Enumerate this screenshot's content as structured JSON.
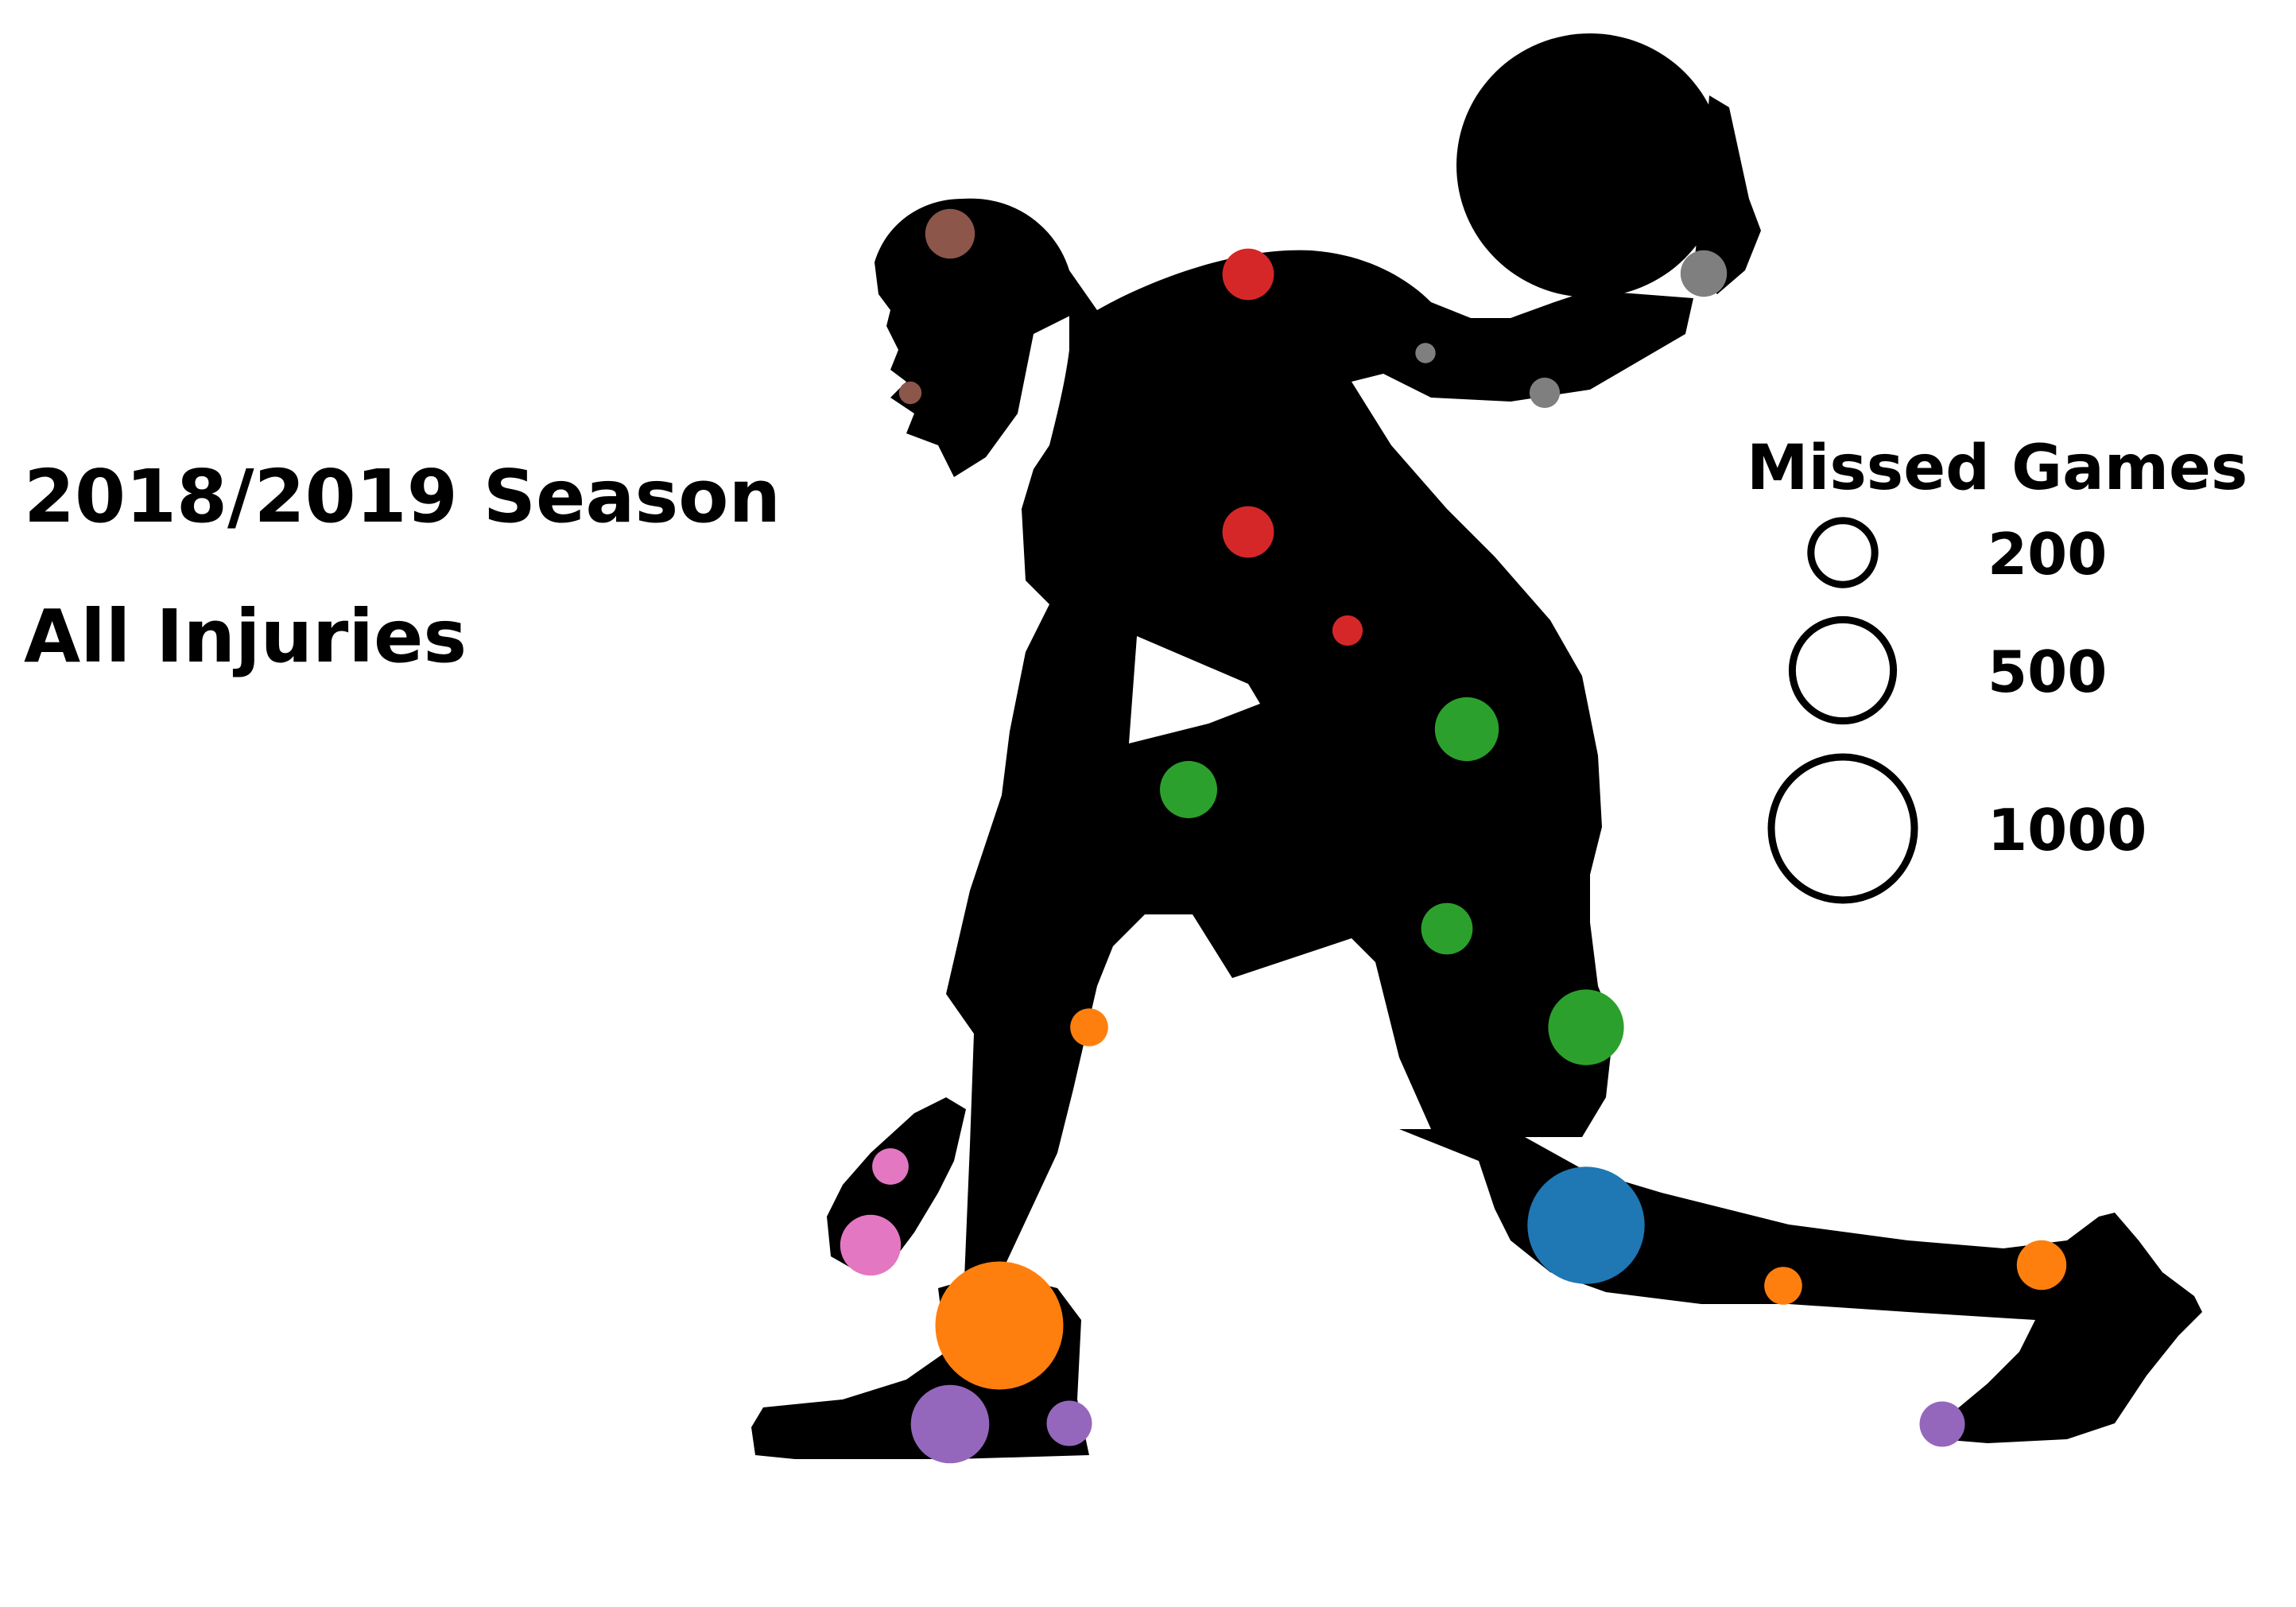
{
  "chart_data": {
    "type": "scatter",
    "title": "2018/2019 Season",
    "subtitle": "All Injuries",
    "size_legend": {
      "title": "Missed Games",
      "entries": [
        200,
        500,
        1000
      ]
    },
    "series": [
      {
        "color": "#d62728",
        "points": [
          {
            "games": 130
          },
          {
            "games": 130
          },
          {
            "games": 45
          }
        ]
      },
      {
        "color": "#8c564b",
        "points": [
          {
            "games": 120
          },
          {
            "games": 25
          }
        ]
      },
      {
        "color": "#7f7f7f",
        "points": [
          {
            "games": 105
          },
          {
            "games": 20
          },
          {
            "games": 45
          }
        ]
      },
      {
        "color": "#2ca02c",
        "points": [
          {
            "games": 200
          },
          {
            "games": 160
          },
          {
            "games": 130
          },
          {
            "games": 280
          }
        ]
      },
      {
        "color": "#ff7f0e",
        "points": [
          {
            "games": 70
          },
          {
            "games": 800
          },
          {
            "games": 70
          },
          {
            "games": 120
          }
        ]
      },
      {
        "color": "#e377c2",
        "points": [
          {
            "games": 65
          },
          {
            "games": 180
          }
        ]
      },
      {
        "color": "#9467bd",
        "points": [
          {
            "games": 300
          },
          {
            "games": 100
          },
          {
            "games": 100
          }
        ]
      },
      {
        "color": "#1f77b4",
        "points": [
          {
            "games": 670
          }
        ]
      }
    ]
  }
}
